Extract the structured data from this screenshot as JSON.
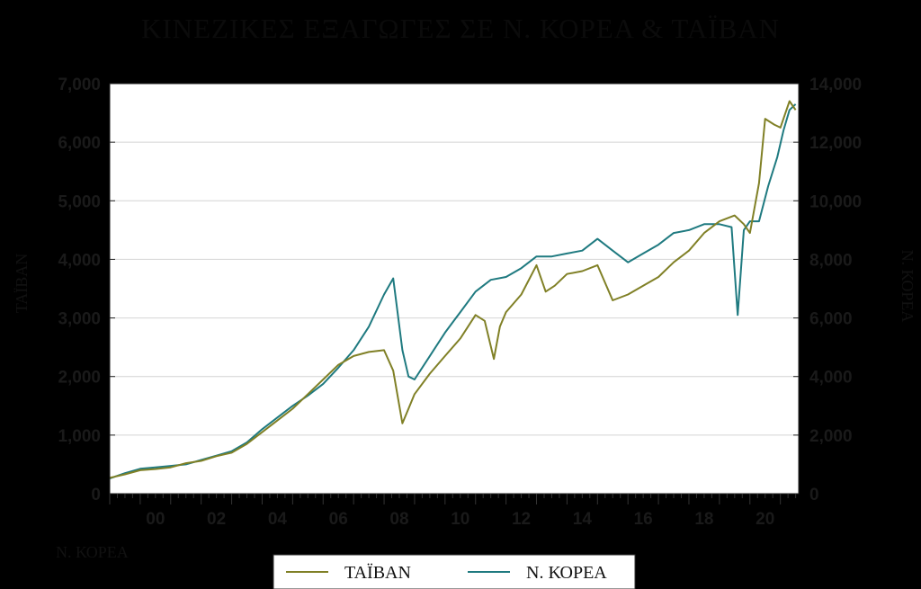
{
  "chart_data": {
    "type": "line",
    "title": "ΚΙΝΕΖΙΚΕΣ ΕΞΑΓΩΓΕΣ ΣΕ Ν. ΚΟΡΕΑ & ΤΑΪΒΑΝ",
    "xlabel": "Ν. ΚΟΡΕΑ",
    "ylabel_left": "ΤΑΪΒΑΝ",
    "ylabel_right": "Ν. ΚΟΡΕΑ",
    "x_ticks": [
      "00",
      "02",
      "04",
      "06",
      "08",
      "10",
      "12",
      "14",
      "16",
      "18",
      "20"
    ],
    "x_range": [
      1999.0,
      2021.6
    ],
    "y_left_ticks": [
      "0",
      "1,000",
      "2,000",
      "3,000",
      "4,000",
      "5,000",
      "6,000",
      "7,000"
    ],
    "y_left_range": [
      0,
      7000
    ],
    "y_right_ticks": [
      "0",
      "2,000",
      "4,000",
      "6,000",
      "8,000",
      "10,000",
      "12,000",
      "14,000"
    ],
    "y_right_range": [
      0,
      14000
    ],
    "grid": true,
    "legend_position": "bottom",
    "series": [
      {
        "name": "ΤΑΪΒΑΝ",
        "axis": "left",
        "color": "#808026",
        "x": [
          1999.0,
          1999.5,
          2000.0,
          2000.5,
          2001.0,
          2001.5,
          2002.0,
          2002.5,
          2003.0,
          2003.5,
          2004.0,
          2004.5,
          2005.0,
          2005.5,
          2006.0,
          2006.5,
          2007.0,
          2007.5,
          2008.0,
          2008.3,
          2008.6,
          2008.8,
          2009.0,
          2009.5,
          2010.0,
          2010.5,
          2011.0,
          2011.3,
          2011.6,
          2011.8,
          2012.0,
          2012.5,
          2013.0,
          2013.3,
          2013.6,
          2014.0,
          2014.5,
          2015.0,
          2015.5,
          2016.0,
          2016.5,
          2017.0,
          2017.5,
          2018.0,
          2018.5,
          2019.0,
          2019.5,
          2019.8,
          2020.0,
          2020.3,
          2020.5,
          2020.8,
          2021.0,
          2021.3,
          2021.5
        ],
        "values": [
          270,
          330,
          400,
          420,
          450,
          520,
          560,
          640,
          700,
          850,
          1050,
          1250,
          1450,
          1700,
          1950,
          2200,
          2350,
          2420,
          2450,
          2100,
          1200,
          1450,
          1700,
          2050,
          2350,
          2650,
          3050,
          2950,
          2300,
          2850,
          3100,
          3400,
          3900,
          3450,
          3550,
          3750,
          3800,
          3900,
          3300,
          3400,
          3550,
          3700,
          3950,
          4150,
          4450,
          4650,
          4750,
          4600,
          4450,
          5300,
          6400,
          6300,
          6250,
          6700,
          6550
        ]
      },
      {
        "name": "Ν. ΚΟΡΕΑ",
        "axis": "right",
        "color": "#1f7a80",
        "x": [
          1999.0,
          1999.5,
          2000.0,
          2000.5,
          2001.0,
          2001.5,
          2002.0,
          2002.5,
          2003.0,
          2003.5,
          2004.0,
          2004.5,
          2005.0,
          2005.5,
          2006.0,
          2006.5,
          2007.0,
          2007.5,
          2008.0,
          2008.3,
          2008.6,
          2008.8,
          2009.0,
          2009.5,
          2010.0,
          2010.5,
          2011.0,
          2011.5,
          2012.0,
          2012.5,
          2013.0,
          2013.5,
          2014.0,
          2014.5,
          2015.0,
          2015.5,
          2016.0,
          2016.5,
          2017.0,
          2017.5,
          2018.0,
          2018.5,
          2019.0,
          2019.4,
          2019.6,
          2019.8,
          2020.0,
          2020.3,
          2020.6,
          2020.9,
          2021.1,
          2021.3,
          2021.5
        ],
        "values": [
          520,
          700,
          850,
          900,
          950,
          1000,
          1150,
          1300,
          1450,
          1750,
          2200,
          2600,
          3000,
          3350,
          3750,
          4300,
          4900,
          5700,
          6800,
          7350,
          4900,
          4000,
          3900,
          4700,
          5500,
          6200,
          6900,
          7300,
          7400,
          7700,
          8100,
          8100,
          8200,
          8300,
          8700,
          8300,
          7900,
          8200,
          8500,
          8900,
          9000,
          9200,
          9200,
          9100,
          6100,
          9000,
          9300,
          9300,
          10500,
          11500,
          12400,
          13100,
          13300
        ]
      }
    ]
  }
}
